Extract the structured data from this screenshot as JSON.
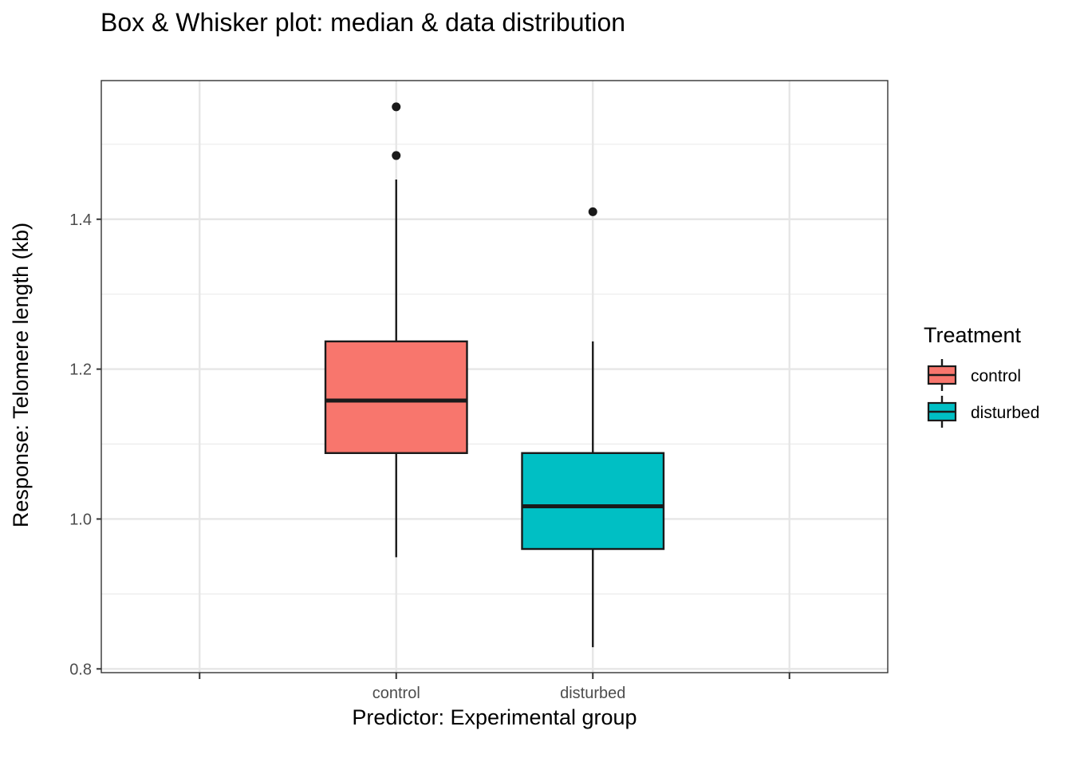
{
  "chart_data": {
    "type": "box",
    "title": "Box & Whisker plot: median & data distribution",
    "xlabel": "Predictor: Experimental group",
    "ylabel": "Response: Telomere length (kb)",
    "categories": [
      "",
      "control",
      "disturbed",
      ""
    ],
    "ylim": [
      0.795,
      1.585
    ],
    "yticks": [
      0.8,
      1.0,
      1.2,
      1.4
    ],
    "ytick_labels": [
      "0.8",
      "1.0",
      "1.2",
      "1.4"
    ],
    "grid": true,
    "legend": {
      "title": "Treatment",
      "position": "right",
      "entries": [
        {
          "label": "control",
          "color": "#F8766D"
        },
        {
          "label": "disturbed",
          "color": "#00BFC4"
        }
      ]
    },
    "boxes": [
      {
        "category": "control",
        "color": "#F8766D",
        "min": 0.949,
        "q1": 1.088,
        "median": 1.158,
        "q3": 1.237,
        "max": 1.453,
        "outliers": [
          1.485,
          1.55
        ]
      },
      {
        "category": "disturbed",
        "color": "#00BFC4",
        "min": 0.829,
        "q1": 0.96,
        "median": 1.017,
        "q3": 1.088,
        "max": 1.237,
        "outliers": [
          1.41
        ]
      }
    ]
  }
}
